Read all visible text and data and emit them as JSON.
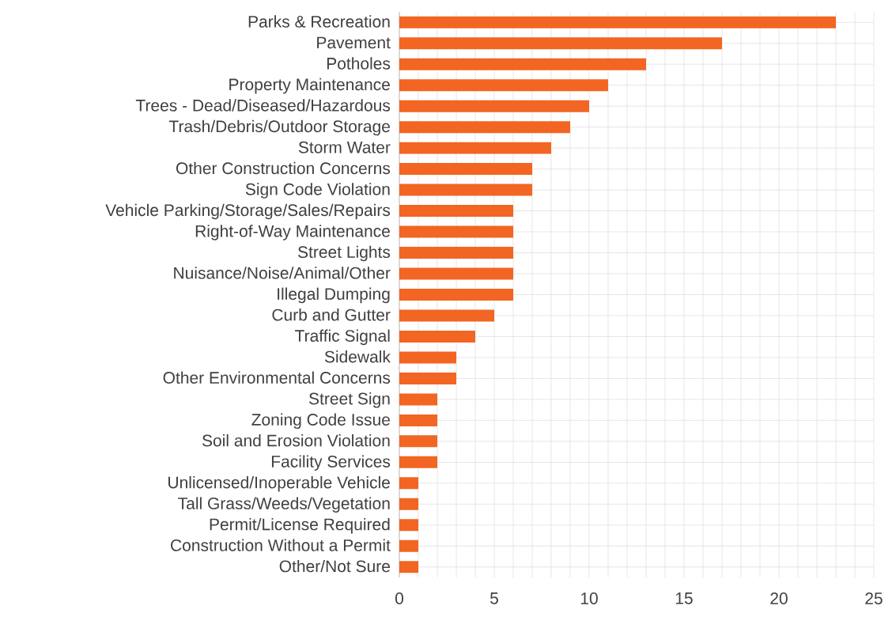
{
  "chart_data": {
    "type": "bar",
    "orientation": "horizontal",
    "color": "#f26522",
    "categories": [
      "Parks & Recreation",
      "Pavement",
      "Potholes",
      "Property Maintenance",
      "Trees - Dead/Diseased/Hazardous",
      "Trash/Debris/Outdoor Storage",
      "Storm Water",
      "Other Construction Concerns",
      "Sign Code Violation",
      "Vehicle Parking/Storage/Sales/Repairs",
      "Right-of-Way Maintenance",
      "Street Lights",
      "Nuisance/Noise/Animal/Other",
      "Illegal Dumping",
      "Curb and Gutter",
      "Traffic Signal",
      "Sidewalk",
      "Other Environmental Concerns",
      "Street Sign",
      "Zoning Code Issue",
      "Soil and Erosion Violation",
      "Facility Services",
      "Unlicensed/Inoperable Vehicle",
      "Tall Grass/Weeds/Vegetation",
      "Permit/License Required",
      "Construction Without a Permit",
      "Other/Not Sure"
    ],
    "values": [
      23,
      17,
      13,
      11,
      10,
      9,
      8,
      7,
      7,
      6,
      6,
      6,
      6,
      6,
      5,
      4,
      3,
      3,
      2,
      2,
      2,
      2,
      1,
      1,
      1,
      1,
      1
    ],
    "xlim": [
      0,
      25
    ],
    "xticks": [
      0,
      {
        "value": 1,
        "label": null
      },
      {
        "value": 2,
        "label": null
      },
      {
        "value": 3,
        "label": null
      },
      {
        "value": 4,
        "label": null
      },
      5,
      {
        "value": 6,
        "label": null
      },
      {
        "value": 7,
        "label": null
      },
      {
        "value": 8,
        "label": null
      },
      {
        "value": 9,
        "label": null
      },
      10,
      {
        "value": 11,
        "label": null
      },
      {
        "value": 12,
        "label": null
      },
      {
        "value": 13,
        "label": null
      },
      {
        "value": 14,
        "label": null
      },
      15,
      {
        "value": 16,
        "label": null
      },
      {
        "value": 17,
        "label": null
      },
      {
        "value": 18,
        "label": null
      },
      {
        "value": 19,
        "label": null
      },
      20,
      {
        "value": 21,
        "label": null
      },
      {
        "value": 22,
        "label": null
      },
      {
        "value": 23,
        "label": null
      },
      {
        "value": 24,
        "label": null
      },
      25
    ],
    "grid": true
  }
}
